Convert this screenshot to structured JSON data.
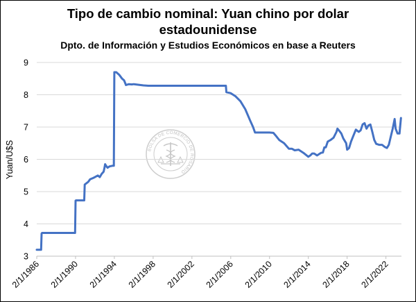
{
  "chart_data": {
    "type": "line",
    "title": "Tipo de cambio nominal: Yuan chino por dolar estadounidense",
    "title_lines": [
      "Tipo de cambio nominal: Yuan chino por dolar",
      "estadounidense"
    ],
    "subtitle": "Dpto. de Información y Estudios Económicos en base a Reuters",
    "xlabel": "",
    "ylabel": "Yuan/U$S",
    "ylim": [
      3,
      9
    ],
    "yticks": [
      3,
      4,
      5,
      6,
      7,
      8,
      9
    ],
    "xlim": [
      1986.0,
      2023.6
    ],
    "xticks": [
      {
        "x": 1986.0,
        "label": "2/1/1986"
      },
      {
        "x": 1990.0,
        "label": "2/1/1990"
      },
      {
        "x": 1994.0,
        "label": "2/1/1994"
      },
      {
        "x": 1998.0,
        "label": "2/1/1998"
      },
      {
        "x": 2002.0,
        "label": "2/1/2002"
      },
      {
        "x": 2006.0,
        "label": "2/1/2006"
      },
      {
        "x": 2010.0,
        "label": "2/1/2010"
      },
      {
        "x": 2014.0,
        "label": "2/1/2014"
      },
      {
        "x": 2018.0,
        "label": "2/1/2018"
      },
      {
        "x": 2022.0,
        "label": "2/1/2022"
      }
    ],
    "grid": true,
    "legend": "none",
    "series": [
      {
        "color": "#4472C4",
        "x": [
          1986.0,
          1986.25,
          1986.45,
          1986.5,
          1986.55,
          1989.95,
          1990.0,
          1990.05,
          1990.9,
          1990.95,
          1991.0,
          1991.3,
          1991.5,
          1991.8,
          1992.0,
          1992.3,
          1992.5,
          1992.7,
          1992.9,
          1993.0,
          1993.05,
          1993.15,
          1993.3,
          1993.5,
          1993.8,
          1993.95,
          1994.0,
          1994.2,
          1994.5,
          1994.8,
          1995.0,
          1995.2,
          1995.5,
          1995.8,
          1996.0,
          1996.5,
          1997.0,
          1997.5,
          1998.0,
          2000.0,
          2002.0,
          2004.0,
          2005.0,
          2005.5,
          2005.55,
          2006.0,
          2006.5,
          2007.0,
          2007.5,
          2008.0,
          2008.3,
          2008.5,
          2009.0,
          2010.0,
          2010.4,
          2010.6,
          2011.0,
          2011.5,
          2012.0,
          2012.3,
          2012.6,
          2013.0,
          2013.5,
          2014.0,
          2014.2,
          2014.4,
          2014.6,
          2014.9,
          2015.3,
          2015.5,
          2015.65,
          2015.8,
          2016.0,
          2016.3,
          2016.6,
          2016.9,
          2017.0,
          2017.2,
          2017.4,
          2017.6,
          2017.9,
          2018.0,
          2018.2,
          2018.4,
          2018.6,
          2018.9,
          2019.2,
          2019.4,
          2019.6,
          2019.8,
          2020.0,
          2020.2,
          2020.4,
          2020.6,
          2020.8,
          2021.0,
          2021.3,
          2021.6,
          2021.9,
          2022.1,
          2022.3,
          2022.5,
          2022.7,
          2022.9,
          2023.0,
          2023.2,
          2023.4,
          2023.55
        ],
        "y": [
          3.2,
          3.2,
          3.2,
          3.7,
          3.72,
          3.72,
          4.72,
          4.73,
          4.73,
          5.22,
          5.23,
          5.3,
          5.38,
          5.42,
          5.45,
          5.5,
          5.45,
          5.55,
          5.62,
          5.76,
          5.85,
          5.8,
          5.74,
          5.78,
          5.8,
          5.8,
          8.7,
          8.7,
          8.62,
          8.5,
          8.45,
          8.3,
          8.33,
          8.32,
          8.33,
          8.31,
          8.29,
          8.28,
          8.28,
          8.28,
          8.28,
          8.28,
          8.28,
          8.28,
          8.08,
          8.05,
          7.95,
          7.8,
          7.55,
          7.2,
          7.0,
          6.83,
          6.83,
          6.83,
          6.82,
          6.75,
          6.6,
          6.5,
          6.33,
          6.33,
          6.28,
          6.3,
          6.2,
          6.08,
          6.12,
          6.18,
          6.18,
          6.12,
          6.2,
          6.21,
          6.37,
          6.37,
          6.55,
          6.6,
          6.67,
          6.85,
          6.95,
          6.88,
          6.8,
          6.65,
          6.5,
          6.3,
          6.35,
          6.55,
          6.7,
          6.92,
          6.85,
          6.9,
          7.08,
          7.12,
          6.95,
          7.05,
          7.08,
          6.85,
          6.6,
          6.48,
          6.45,
          6.45,
          6.38,
          6.35,
          6.45,
          6.7,
          6.95,
          7.25,
          6.95,
          6.8,
          6.8,
          7.28
        ]
      }
    ],
    "watermark": "BOLSA DE COMERCIO DE ROSARIO",
    "colors": {
      "line": "#4472C4",
      "grid": "#d9d9d9",
      "axis": "#bfbfbf",
      "watermark": "#c9c9c9"
    }
  }
}
